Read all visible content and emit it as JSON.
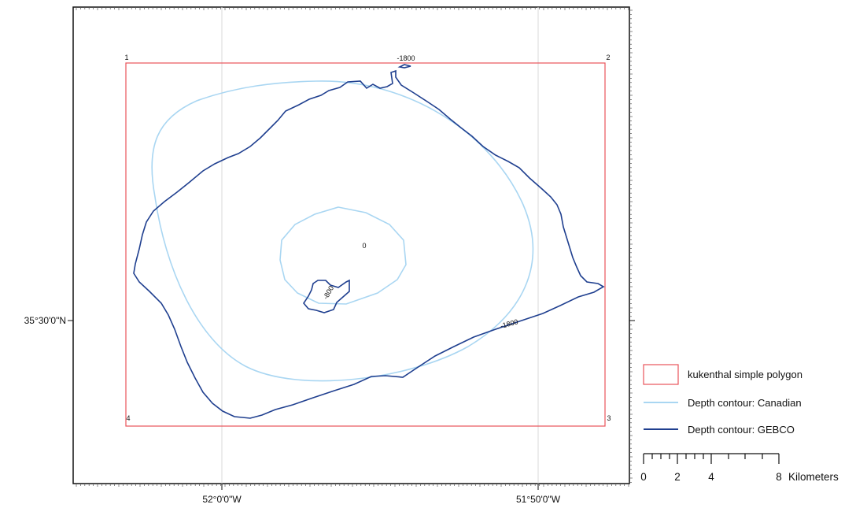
{
  "map": {
    "colors": {
      "polygon": "#e8535a",
      "canadian": "#a9d6f2",
      "gebco": "#1f3f8f",
      "frame": "#111111",
      "graticule": "#d8d8d8"
    },
    "corner_labels": [
      "1",
      "2",
      "3",
      "4"
    ],
    "contour_labels": {
      "top": "-1800",
      "right": "-1800",
      "center": "0",
      "inner": "-800"
    },
    "latitude_labels": [
      "35°30'0\"N"
    ],
    "longitude_labels": [
      "52°0'0\"W",
      "51°50'0\"W"
    ]
  },
  "legend": {
    "items": [
      {
        "label": "kukenthal simple polygon",
        "symbol": "polygon"
      },
      {
        "label": "Depth contour: Canadian",
        "symbol": "canadian"
      },
      {
        "label": "Depth contour: GEBCO",
        "symbol": "gebco"
      }
    ]
  },
  "scalebar": {
    "ticks": [
      "0",
      "2",
      "4",
      "8"
    ],
    "units": "Kilometers"
  }
}
